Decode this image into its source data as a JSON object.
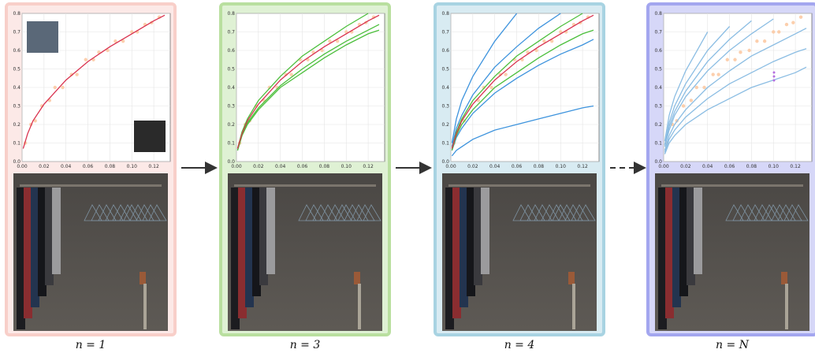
{
  "chart_data": [
    {
      "type": "line",
      "caption": "n = 1",
      "xlim": [
        0,
        0.135
      ],
      "ylim": [
        0,
        0.8
      ],
      "xticks": [
        {
          "value": 0,
          "label": "0.00"
        },
        {
          "value": 0.02,
          "label": "0.02"
        },
        {
          "value": 0.04,
          "label": "0.04"
        },
        {
          "value": 0.06,
          "label": "0.06"
        },
        {
          "value": 0.08,
          "label": "0.08"
        },
        {
          "value": 0.1,
          "label": "0.10"
        },
        {
          "value": 0.12,
          "label": "0.12"
        }
      ],
      "yticks": [
        {
          "value": 0,
          "label": "0.0"
        },
        {
          "value": 0.1,
          "label": "0.1"
        },
        {
          "value": 0.2,
          "label": "0.2"
        },
        {
          "value": 0.3,
          "label": "0.3"
        },
        {
          "value": 0.4,
          "label": "0.4"
        },
        {
          "value": 0.5,
          "label": "0.5"
        },
        {
          "value": 0.6,
          "label": "0.6"
        },
        {
          "value": 0.7,
          "label": "0.7"
        },
        {
          "value": 0.8,
          "label": "0.8"
        }
      ],
      "grid": true,
      "panel_color": "#f8cfc9",
      "scatter": {
        "color": "#fbc79f",
        "x": [
          0.003,
          0.008,
          0.012,
          0.018,
          0.025,
          0.03,
          0.037,
          0.045,
          0.05,
          0.058,
          0.065,
          0.07,
          0.078,
          0.085,
          0.092,
          0.1,
          0.105,
          0.112,
          0.118,
          0.125
        ],
        "y": [
          0.1,
          0.2,
          0.22,
          0.3,
          0.33,
          0.4,
          0.4,
          0.47,
          0.47,
          0.55,
          0.55,
          0.59,
          0.6,
          0.65,
          0.65,
          0.7,
          0.7,
          0.74,
          0.75,
          0.78
        ]
      },
      "x": [
        0.001,
        0.005,
        0.01,
        0.02,
        0.04,
        0.06,
        0.08,
        0.1,
        0.12,
        0.13
      ],
      "series": [
        {
          "color": "#d9324f",
          "values": [
            0.07,
            0.15,
            0.22,
            0.31,
            0.44,
            0.54,
            0.62,
            0.69,
            0.76,
            0.79
          ]
        }
      ]
    },
    {
      "type": "line",
      "caption": "n = 3",
      "xlim": [
        0,
        0.135
      ],
      "ylim": [
        0,
        0.8
      ],
      "xticks": [
        {
          "value": 0,
          "label": "0.00"
        },
        {
          "value": 0.02,
          "label": "0.02"
        },
        {
          "value": 0.04,
          "label": "0.04"
        },
        {
          "value": 0.06,
          "label": "0.06"
        },
        {
          "value": 0.08,
          "label": "0.08"
        },
        {
          "value": 0.1,
          "label": "0.10"
        },
        {
          "value": 0.12,
          "label": "0.12"
        }
      ],
      "yticks": [
        {
          "value": 0,
          "label": "0.0"
        },
        {
          "value": 0.1,
          "label": "0.1"
        },
        {
          "value": 0.2,
          "label": "0.2"
        },
        {
          "value": 0.3,
          "label": "0.3"
        },
        {
          "value": 0.4,
          "label": "0.4"
        },
        {
          "value": 0.5,
          "label": "0.5"
        },
        {
          "value": 0.6,
          "label": "0.6"
        },
        {
          "value": 0.7,
          "label": "0.7"
        },
        {
          "value": 0.8,
          "label": "0.8"
        }
      ],
      "grid": true,
      "panel_color": "#b9df9f",
      "scatter": {
        "color": "#fbc79f",
        "x": [
          0.003,
          0.008,
          0.012,
          0.018,
          0.025,
          0.03,
          0.037,
          0.045,
          0.05,
          0.058,
          0.065,
          0.07,
          0.078,
          0.085,
          0.092,
          0.1,
          0.105,
          0.112,
          0.118,
          0.125
        ],
        "y": [
          0.1,
          0.2,
          0.22,
          0.3,
          0.33,
          0.4,
          0.4,
          0.47,
          0.47,
          0.55,
          0.55,
          0.59,
          0.6,
          0.65,
          0.65,
          0.7,
          0.7,
          0.74,
          0.75,
          0.78
        ]
      },
      "x": [
        0.001,
        0.005,
        0.01,
        0.02,
        0.04,
        0.06,
        0.08,
        0.1,
        0.12,
        0.13
      ],
      "series": [
        {
          "color": "#4cbf3c",
          "values": [
            0.07,
            0.16,
            0.23,
            0.33,
            0.46,
            0.57,
            0.65,
            0.73,
            0.8,
            null
          ]
        },
        {
          "color": "#4cbf3c",
          "values": [
            0.06,
            0.14,
            0.21,
            0.29,
            0.41,
            0.5,
            0.58,
            0.65,
            0.71,
            0.74
          ]
        },
        {
          "color": "#4cbf3c",
          "values": [
            0.06,
            0.14,
            0.2,
            0.28,
            0.4,
            0.48,
            0.56,
            0.63,
            0.69,
            0.71
          ]
        },
        {
          "color": "#d9324f",
          "values": [
            0.07,
            0.15,
            0.22,
            0.31,
            0.44,
            0.54,
            0.62,
            0.69,
            0.76,
            0.79
          ]
        }
      ]
    },
    {
      "type": "line",
      "caption": "n = 4",
      "xlim": [
        0,
        0.135
      ],
      "ylim": [
        0,
        0.8
      ],
      "xticks": [
        {
          "value": 0,
          "label": "0.00"
        },
        {
          "value": 0.02,
          "label": "0.02"
        },
        {
          "value": 0.04,
          "label": "0.04"
        },
        {
          "value": 0.06,
          "label": "0.06"
        },
        {
          "value": 0.08,
          "label": "0.08"
        },
        {
          "value": 0.1,
          "label": "0.10"
        },
        {
          "value": 0.12,
          "label": "0.12"
        }
      ],
      "yticks": [
        {
          "value": 0,
          "label": "0.0"
        },
        {
          "value": 0.1,
          "label": "0.1"
        },
        {
          "value": 0.2,
          "label": "0.2"
        },
        {
          "value": 0.3,
          "label": "0.3"
        },
        {
          "value": 0.4,
          "label": "0.4"
        },
        {
          "value": 0.5,
          "label": "0.5"
        },
        {
          "value": 0.6,
          "label": "0.6"
        },
        {
          "value": 0.7,
          "label": "0.7"
        },
        {
          "value": 0.8,
          "label": "0.8"
        }
      ],
      "grid": true,
      "panel_color": "#a8d3e2",
      "scatter": {
        "color": "#fbc79f",
        "x": [
          0.003,
          0.008,
          0.012,
          0.018,
          0.025,
          0.03,
          0.037,
          0.045,
          0.05,
          0.058,
          0.065,
          0.07,
          0.078,
          0.085,
          0.092,
          0.1,
          0.105,
          0.112,
          0.118,
          0.125
        ],
        "y": [
          0.1,
          0.2,
          0.22,
          0.3,
          0.33,
          0.4,
          0.4,
          0.47,
          0.47,
          0.55,
          0.55,
          0.59,
          0.6,
          0.65,
          0.65,
          0.7,
          0.7,
          0.74,
          0.75,
          0.78
        ]
      },
      "x": [
        0.001,
        0.005,
        0.01,
        0.02,
        0.04,
        0.06,
        0.08,
        0.1,
        0.12,
        0.13
      ],
      "series": [
        {
          "color": "#3d93dd",
          "values": [
            0.1,
            0.23,
            0.33,
            0.46,
            0.65,
            0.8,
            null,
            null,
            null,
            null
          ]
        },
        {
          "color": "#3d93dd",
          "values": [
            0.08,
            0.18,
            0.25,
            0.36,
            0.51,
            0.62,
            0.72,
            0.8,
            null,
            null
          ]
        },
        {
          "color": "#3d93dd",
          "values": [
            0.06,
            0.13,
            0.18,
            0.26,
            0.37,
            0.45,
            0.52,
            0.58,
            0.63,
            0.66
          ]
        },
        {
          "color": "#3d93dd",
          "values": [
            0.03,
            0.06,
            0.08,
            0.12,
            0.17,
            0.2,
            0.23,
            0.26,
            0.29,
            0.3
          ]
        },
        {
          "color": "#4cbf3c",
          "values": [
            0.07,
            0.16,
            0.23,
            0.33,
            0.46,
            0.57,
            0.65,
            0.73,
            0.8,
            null
          ]
        },
        {
          "color": "#4cbf3c",
          "values": [
            0.06,
            0.14,
            0.2,
            0.28,
            0.4,
            0.48,
            0.56,
            0.63,
            0.69,
            0.71
          ]
        },
        {
          "color": "#d9324f",
          "values": [
            0.07,
            0.15,
            0.22,
            0.31,
            0.44,
            0.54,
            0.62,
            0.69,
            0.76,
            0.79
          ]
        }
      ]
    },
    {
      "type": "line",
      "caption": "n = N",
      "xlim": [
        0,
        0.135
      ],
      "ylim": [
        0,
        0.8
      ],
      "xticks": [
        {
          "value": 0,
          "label": "0.00"
        },
        {
          "value": 0.02,
          "label": "0.02"
        },
        {
          "value": 0.04,
          "label": "0.04"
        },
        {
          "value": 0.06,
          "label": "0.06"
        },
        {
          "value": 0.08,
          "label": "0.08"
        },
        {
          "value": 0.1,
          "label": "0.10"
        },
        {
          "value": 0.12,
          "label": "0.12"
        }
      ],
      "yticks": [
        {
          "value": 0,
          "label": "0.0"
        },
        {
          "value": 0.1,
          "label": "0.1"
        },
        {
          "value": 0.2,
          "label": "0.2"
        },
        {
          "value": 0.3,
          "label": "0.3"
        },
        {
          "value": 0.4,
          "label": "0.4"
        },
        {
          "value": 0.5,
          "label": "0.5"
        },
        {
          "value": 0.6,
          "label": "0.6"
        },
        {
          "value": 0.7,
          "label": "0.7"
        },
        {
          "value": 0.8,
          "label": "0.8"
        }
      ],
      "grid": true,
      "panel_color": "#a3a6ef",
      "scatter": {
        "color": "#fbc79f",
        "x": [
          0.003,
          0.008,
          0.012,
          0.018,
          0.025,
          0.03,
          0.037,
          0.045,
          0.05,
          0.058,
          0.065,
          0.07,
          0.078,
          0.085,
          0.092,
          0.1,
          0.105,
          0.112,
          0.118,
          0.125
        ],
        "y": [
          0.1,
          0.2,
          0.22,
          0.3,
          0.33,
          0.4,
          0.4,
          0.47,
          0.47,
          0.55,
          0.55,
          0.59,
          0.6,
          0.65,
          0.65,
          0.7,
          0.7,
          0.74,
          0.75,
          0.78
        ]
      },
      "x": [
        0.001,
        0.005,
        0.01,
        0.02,
        0.04,
        0.06,
        0.08,
        0.1,
        0.12,
        0.13
      ],
      "series": [
        {
          "color": "#8bbde3",
          "values": [
            0.11,
            0.25,
            0.35,
            0.49,
            0.7,
            null,
            null,
            null,
            null,
            null
          ]
        },
        {
          "color": "#8bbde3",
          "values": [
            0.09,
            0.21,
            0.3,
            0.42,
            0.6,
            0.73,
            null,
            null,
            null,
            null
          ]
        },
        {
          "color": "#8bbde3",
          "values": [
            0.09,
            0.19,
            0.27,
            0.38,
            0.54,
            0.66,
            0.76,
            null,
            null,
            null
          ]
        },
        {
          "color": "#8bbde3",
          "values": [
            0.08,
            0.17,
            0.25,
            0.35,
            0.49,
            0.6,
            0.69,
            0.77,
            null,
            null
          ]
        },
        {
          "color": "#8bbde3",
          "values": [
            0.06,
            0.14,
            0.2,
            0.28,
            0.4,
            0.49,
            0.57,
            0.63,
            0.69,
            0.72
          ]
        },
        {
          "color": "#8bbde3",
          "values": [
            0.05,
            0.12,
            0.17,
            0.24,
            0.34,
            0.42,
            0.48,
            0.54,
            0.59,
            0.61
          ]
        },
        {
          "color": "#8bbde3",
          "values": [
            0.04,
            0.1,
            0.14,
            0.2,
            0.28,
            0.34,
            0.4,
            0.44,
            0.48,
            0.51
          ]
        }
      ]
    }
  ]
}
